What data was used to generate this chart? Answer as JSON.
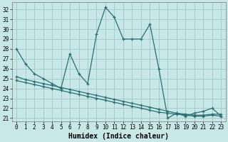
{
  "xlabel": "Humidex (Indice chaleur)",
  "background_color": "#c8e8e8",
  "grid_color": "#9dc8c8",
  "line_color": "#2a7070",
  "xlim": [
    -0.5,
    23.5
  ],
  "ylim": [
    20.7,
    32.7
  ],
  "yticks": [
    21,
    22,
    23,
    24,
    25,
    26,
    27,
    28,
    29,
    30,
    31,
    32
  ],
  "xticks": [
    0,
    1,
    2,
    3,
    4,
    5,
    6,
    7,
    8,
    9,
    10,
    11,
    12,
    13,
    14,
    15,
    16,
    17,
    18,
    19,
    20,
    21,
    22,
    23
  ],
  "y_main": [
    28.0,
    26.5,
    25.5,
    25.0,
    24.5,
    24.0,
    27.5,
    25.5,
    24.5,
    29.5,
    32.2,
    31.2,
    29.0,
    29.0,
    29.0,
    30.5,
    26.0,
    21.0,
    21.5,
    21.2,
    21.5,
    21.7,
    22.0,
    21.2
  ],
  "y_line2": [
    25.2,
    24.9,
    24.7,
    24.5,
    24.3,
    24.1,
    23.9,
    23.7,
    23.5,
    23.3,
    23.1,
    22.9,
    22.7,
    22.5,
    22.3,
    22.1,
    21.9,
    21.7,
    21.5,
    21.4,
    21.3,
    21.3,
    21.4,
    21.4
  ],
  "y_line3": [
    24.8,
    24.6,
    24.4,
    24.2,
    24.0,
    23.8,
    23.6,
    23.4,
    23.2,
    23.0,
    22.8,
    22.6,
    22.4,
    22.2,
    22.0,
    21.8,
    21.6,
    21.5,
    21.4,
    21.3,
    21.2,
    21.2,
    21.3,
    21.2
  ]
}
